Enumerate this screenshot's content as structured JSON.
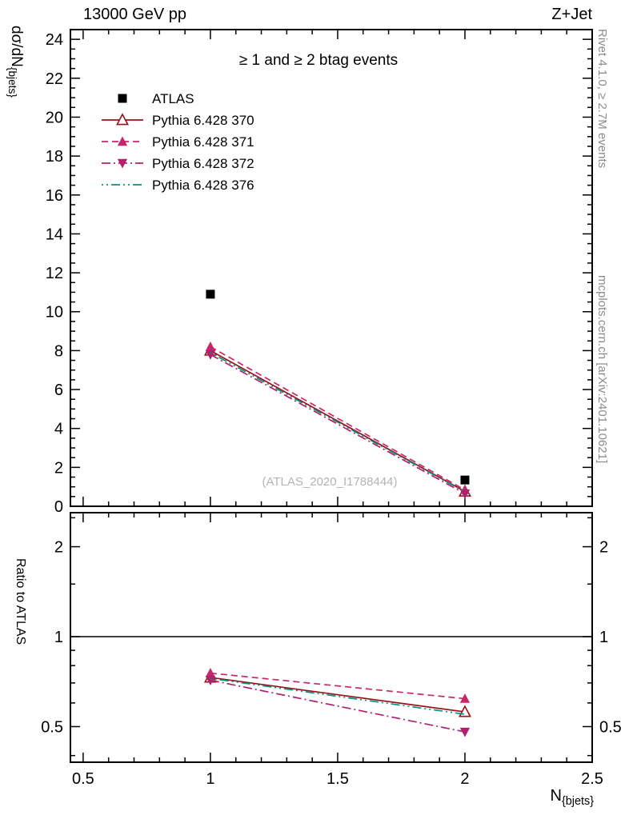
{
  "header": {
    "left": "13000 GeV pp",
    "right": "Z+Jet"
  },
  "side_labels": {
    "rivet": "Rivet 4.1.0, ≥ 2.7M events",
    "mcplots": "mcplots.cern.ch [arXiv:2401.10621]"
  },
  "watermark": "(ATLAS_2020_I1788444)",
  "colors": {
    "frame": "#000000",
    "watermark": "#b4b4b4",
    "side_text": "#8c8c8c"
  },
  "chart_data": {
    "type": "line",
    "title": "≥ 1  and ≥ 2 btag events",
    "xlabel": "N_{bjets}",
    "xlabel_base": "N",
    "xlabel_sub": "{bjets}",
    "ylabel": "dσ/dN_{bjets}",
    "ylabel_base": "dσ/dN",
    "ylabel_sub": "{bjets}",
    "ratio_ylabel": "Ratio to ATLAS",
    "x": [
      1,
      2
    ],
    "xlim": [
      0.45,
      2.5
    ],
    "xticks_major": [
      0.5,
      1,
      1.5,
      2,
      2.5
    ],
    "xtick_labels": [
      "0.5",
      "1",
      "1.5",
      "2",
      "2.5"
    ],
    "xticks_minor_step": 0.1,
    "main": {
      "ylim": [
        0,
        24.5
      ],
      "yticks_major": [
        0,
        2,
        4,
        6,
        8,
        10,
        12,
        14,
        16,
        18,
        20,
        22,
        24
      ],
      "yticks_minor_step": 0.5,
      "grid": false
    },
    "ratio": {
      "scale": "log",
      "ylim": [
        0.38,
        2.6
      ],
      "yticks": [
        0.5,
        1,
        2
      ],
      "ytick_labels": [
        "0.5",
        "1",
        "2"
      ],
      "yticks_minor": [
        0.4,
        0.6,
        0.7,
        0.8,
        0.9,
        1.5,
        2.5
      ],
      "reference_line": 1
    },
    "legend_position": "top-left",
    "series": [
      {
        "name": "ATLAS",
        "color": "#000000",
        "marker": "square-filled",
        "line": "none",
        "values": [
          10.9,
          1.35
        ],
        "ratio": null
      },
      {
        "name": "Pythia 6.428 370",
        "color": "#9b1016",
        "marker": "triangle-open",
        "line": "solid",
        "values": [
          8.0,
          0.76
        ],
        "ratio": [
          0.73,
          0.56
        ]
      },
      {
        "name": "Pythia 6.428 371",
        "color": "#c9256b",
        "marker": "triangle-filled",
        "line": "dashed",
        "values": [
          8.2,
          0.84
        ],
        "ratio": [
          0.755,
          0.62
        ]
      },
      {
        "name": "Pythia 6.428 372",
        "color": "#b0206e",
        "marker": "triangle-down-filled",
        "line": "dashdot",
        "values": [
          7.8,
          0.65
        ],
        "ratio": [
          0.715,
          0.48
        ]
      },
      {
        "name": "Pythia 6.428 376",
        "color": "#00957e",
        "marker": "none",
        "line": "dashdotdot",
        "values": [
          7.9,
          0.74
        ],
        "ratio": [
          0.725,
          0.55
        ]
      }
    ]
  }
}
